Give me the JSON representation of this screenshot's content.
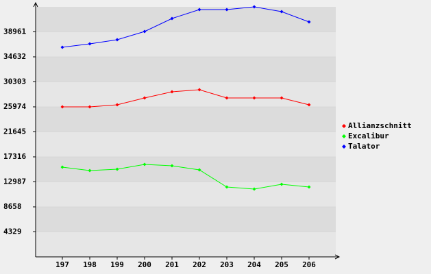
{
  "chart_data": {
    "type": "line",
    "categories": [
      "197",
      "198",
      "199",
      "200",
      "201",
      "202",
      "203",
      "204",
      "205",
      "206"
    ],
    "series": [
      {
        "name": "Allianzschnitt",
        "color": "#ff0000",
        "values": [
          25974,
          25974,
          26330,
          27516,
          28583,
          28939,
          27516,
          27516,
          27516,
          26330
        ]
      },
      {
        "name": "Excalibur",
        "color": "#00ff00",
        "values": [
          15537,
          14944,
          15181,
          16011,
          15774,
          15063,
          12097,
          11742,
          12572,
          12097
        ]
      },
      {
        "name": "Talator",
        "color": "#0000ff",
        "values": [
          36293,
          36886,
          37597,
          39020,
          41273,
          42815,
          42815,
          43290,
          42460,
          40681
        ]
      }
    ],
    "ylim": [
      0,
      43290
    ],
    "yticks": [
      4329,
      8658,
      12987,
      17316,
      21645,
      25974,
      30303,
      34632,
      38961
    ],
    "grid": true
  }
}
